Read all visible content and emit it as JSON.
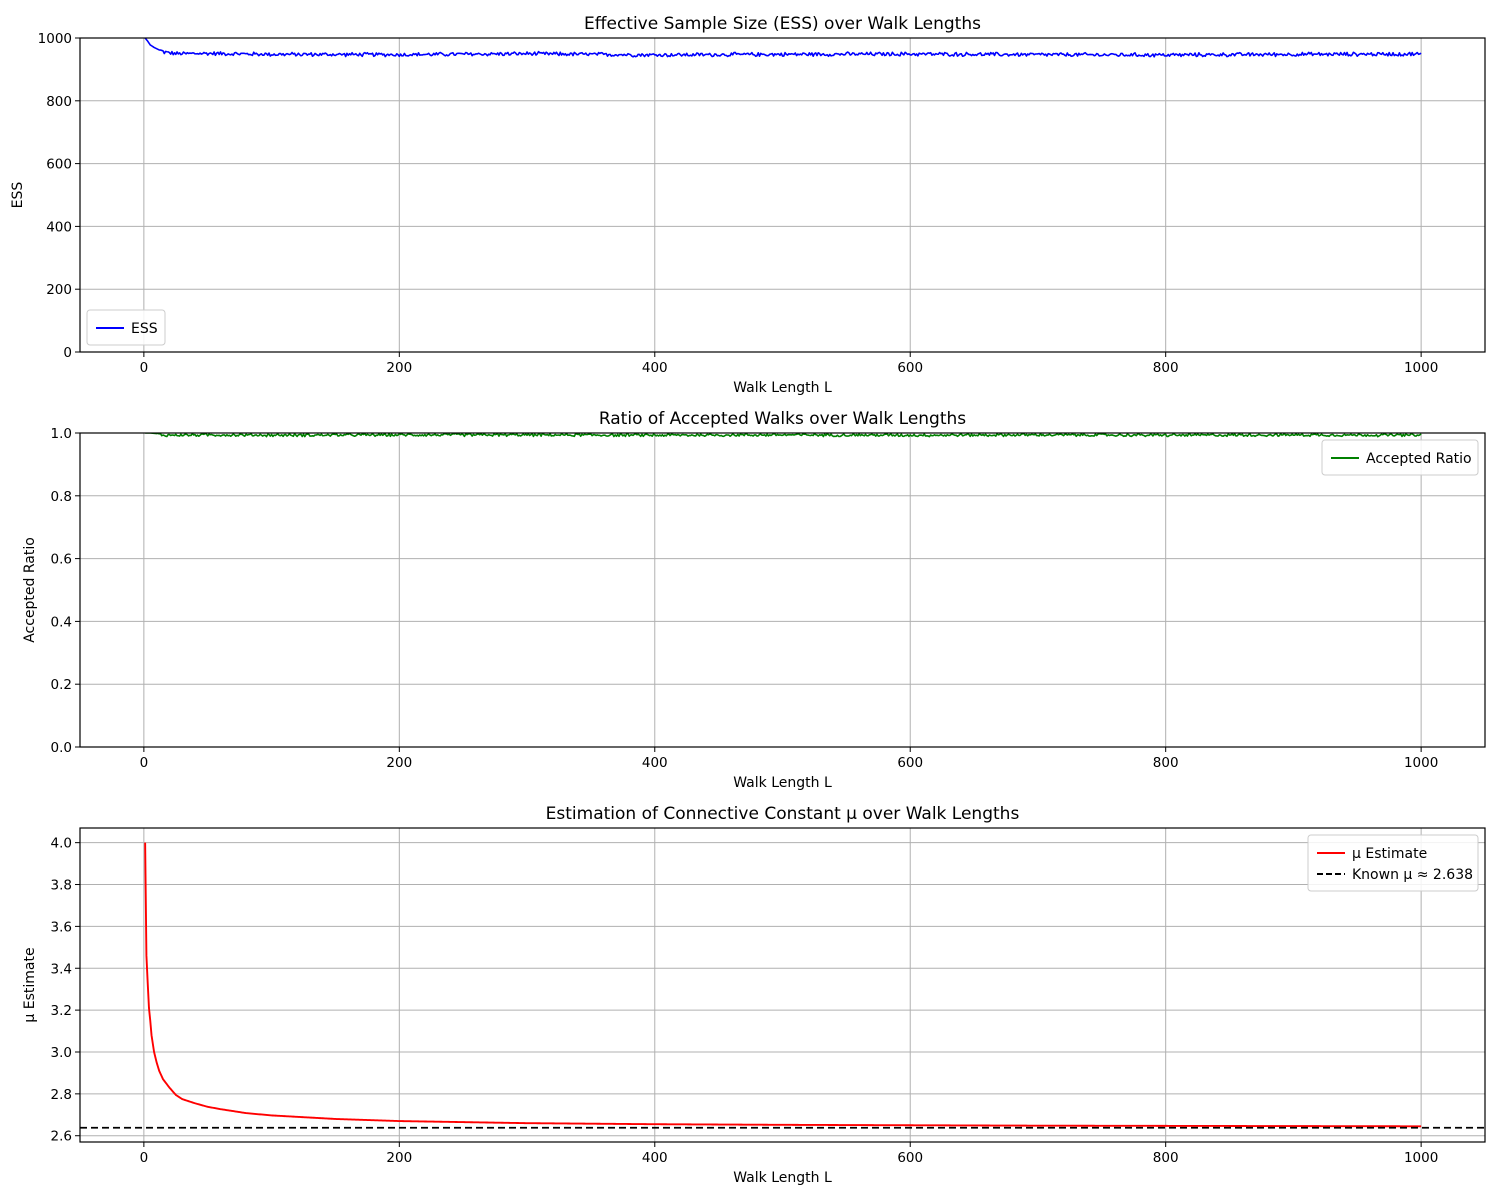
{
  "chart_data": [
    {
      "type": "line",
      "title": "Effective Sample Size (ESS) over Walk Lengths",
      "xlabel": "Walk Length L",
      "ylabel": "ESS",
      "xlim": [
        -50,
        1050
      ],
      "ylim": [
        0,
        1000
      ],
      "xticks": [
        0,
        200,
        400,
        600,
        800,
        1000
      ],
      "yticks": [
        0,
        200,
        400,
        600,
        800,
        1000
      ],
      "ytick_labels": [
        "0",
        "200",
        "400",
        "600",
        "800",
        "1000"
      ],
      "grid": true,
      "legend_position": "lower-left",
      "series": [
        {
          "name": "ESS",
          "color": "#0000ff",
          "style": "solid",
          "description": "starts at 1000 at L=1, drops to about 950 by L≈15, then fluctuates between about 935 and 960",
          "x": [
            1,
            3,
            5,
            8,
            12,
            16,
            25,
            50,
            100,
            200,
            300,
            400,
            500,
            600,
            700,
            800,
            900,
            1000
          ],
          "y": [
            1000,
            990,
            978,
            970,
            962,
            955,
            950,
            951,
            948,
            947,
            950,
            946,
            948,
            949,
            947,
            946,
            948,
            949
          ]
        }
      ]
    },
    {
      "type": "line",
      "title": "Ratio of Accepted Walks over Walk Lengths",
      "xlabel": "Walk Length L",
      "ylabel": "Accepted Ratio",
      "xlim": [
        -50,
        1050
      ],
      "ylim": [
        0,
        1.0
      ],
      "xticks": [
        0,
        200,
        400,
        600,
        800,
        1000
      ],
      "yticks": [
        0,
        0.2,
        0.4,
        0.6,
        0.8,
        1.0
      ],
      "ytick_labels": [
        "0.0",
        "0.2",
        "0.4",
        "0.6",
        "0.8",
        "1.0"
      ],
      "grid": true,
      "legend_position": "top-right",
      "series": [
        {
          "name": "Accepted Ratio",
          "color": "#008000",
          "style": "solid",
          "description": "stays at about 0.99–1.0 for all walk lengths",
          "x": [
            1,
            5,
            10,
            15,
            50,
            100,
            200,
            300,
            400,
            500,
            600,
            700,
            800,
            900,
            1000
          ],
          "y": [
            1.0,
            1.0,
            0.998,
            0.993,
            0.994,
            0.993,
            0.994,
            0.994,
            0.993,
            0.994,
            0.993,
            0.994,
            0.993,
            0.994,
            0.993
          ]
        }
      ]
    },
    {
      "type": "line",
      "title": "Estimation of Connective Constant μ over Walk Lengths",
      "xlabel": "Walk Length L",
      "ylabel": "μ Estimate",
      "xlim": [
        -50,
        1050
      ],
      "ylim": [
        2.57,
        4.07
      ],
      "xticks": [
        0,
        200,
        400,
        600,
        800,
        1000
      ],
      "yticks": [
        2.6,
        2.8,
        3.0,
        3.2,
        3.4,
        3.6,
        3.8,
        4.0
      ],
      "ytick_labels": [
        "2.6",
        "2.8",
        "3.0",
        "3.2",
        "3.4",
        "3.6",
        "3.8",
        "4.0"
      ],
      "grid": true,
      "legend_position": "top-right",
      "series": [
        {
          "name": "μ Estimate",
          "color": "#ff0000",
          "style": "solid",
          "x": [
            1,
            2,
            3,
            4,
            5,
            6,
            8,
            10,
            12,
            15,
            20,
            25,
            30,
            40,
            50,
            60,
            80,
            100,
            150,
            200,
            300,
            400,
            500,
            600,
            700,
            800,
            900,
            1000
          ],
          "y": [
            4.0,
            3.46,
            3.33,
            3.21,
            3.15,
            3.08,
            3.0,
            2.95,
            2.91,
            2.87,
            2.83,
            2.795,
            2.775,
            2.755,
            2.738,
            2.727,
            2.708,
            2.697,
            2.68,
            2.67,
            2.66,
            2.655,
            2.652,
            2.65,
            2.648,
            2.647,
            2.646,
            2.645
          ]
        },
        {
          "name": "Known μ ≈ 2.638",
          "color": "#000000",
          "style": "dashed",
          "y_constant": 2.638
        }
      ]
    }
  ]
}
